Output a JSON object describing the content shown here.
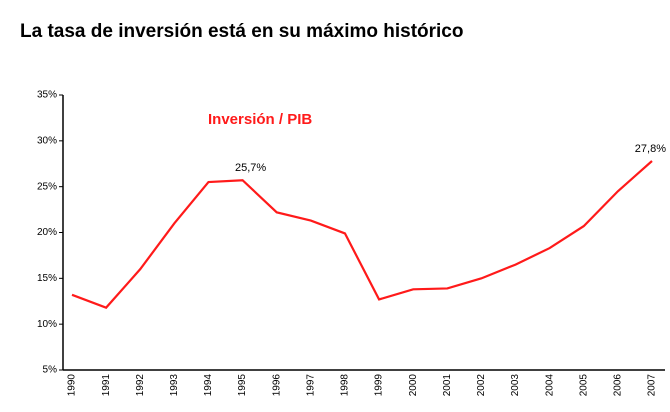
{
  "chart_data": {
    "type": "line",
    "title": "La tasa de inversión está en su máximo histórico",
    "categories": [
      "1990",
      "1991",
      "1992",
      "1993",
      "1994",
      "1995",
      "1996",
      "1997",
      "1998",
      "1999",
      "2000",
      "2001",
      "2002",
      "2003",
      "2004",
      "2005",
      "2006",
      "2007"
    ],
    "series": [
      {
        "name": "Inversión / PIB",
        "color": "#ff1a1a",
        "values": [
          13.2,
          11.8,
          16,
          21,
          25.5,
          25.7,
          22.2,
          21.3,
          19.9,
          12.7,
          13.8,
          13.9,
          15,
          16.5,
          18.3,
          20.7,
          24.5,
          27.8
        ],
        "value_labels": [
          null,
          null,
          null,
          null,
          null,
          "25,7%",
          null,
          null,
          null,
          null,
          null,
          null,
          null,
          null,
          null,
          null,
          null,
          "27,8%"
        ]
      }
    ],
    "ylim": [
      5,
      35
    ],
    "yticks": [
      {
        "value": 5,
        "label": "5%"
      },
      {
        "value": 10,
        "label": "10%"
      },
      {
        "value": 15,
        "label": "15%"
      },
      {
        "value": 20,
        "label": "20%"
      },
      {
        "value": 25,
        "label": "25%"
      },
      {
        "value": 30,
        "label": "30%"
      },
      {
        "value": 35,
        "label": "35%"
      }
    ],
    "grid": false
  }
}
